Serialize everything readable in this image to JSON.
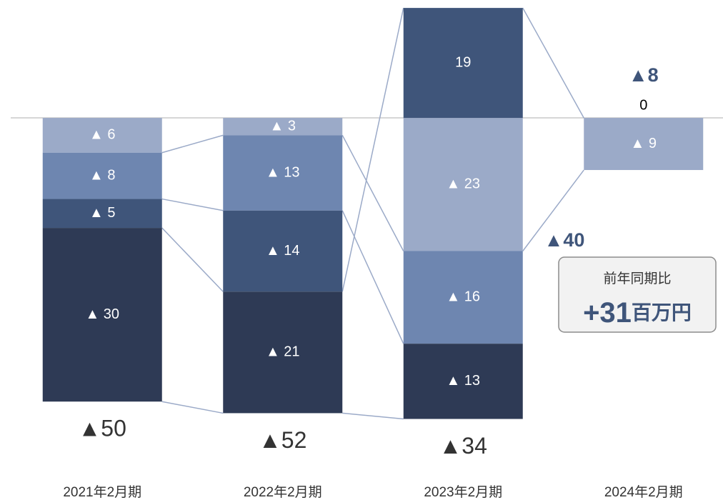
{
  "chart_data": {
    "type": "stacked_bar",
    "categories": [
      "2021年2月期",
      "2022年2月期",
      "2023年2月期",
      "2024年2月期"
    ],
    "series": [
      {
        "color": "#9BAAC8",
        "values": [
          -6,
          -3,
          -23,
          -9
        ],
        "value_labels": [
          "▲ 6",
          "▲ 3",
          "▲ 23",
          "▲ 9"
        ]
      },
      {
        "color": "#6E86B0",
        "values": [
          -8,
          -13,
          -16,
          null
        ],
        "value_labels": [
          "▲ 8",
          "▲ 13",
          "▲ 16",
          null
        ]
      },
      {
        "color": "#3F557A",
        "values": [
          -5,
          -14,
          19,
          0
        ],
        "value_labels": [
          "▲ 5",
          "▲ 14",
          "19",
          "0"
        ]
      },
      {
        "color": "#2E3A55",
        "values": [
          -30,
          -21,
          -13,
          null
        ],
        "value_labels": [
          "▲ 30",
          "▲ 21",
          "▲ 13",
          null
        ]
      }
    ],
    "totals": {
      "values": [
        -50,
        -52,
        -34,
        -8
      ],
      "value_labels": [
        "▲50",
        "▲52",
        "▲34",
        "▲8"
      ]
    },
    "annotations": [
      {
        "text": "▲40"
      }
    ],
    "callout": {
      "title": "前年同期比",
      "amount": "+31",
      "unit": "百万円"
    },
    "ylim": [
      -66,
      20
    ]
  }
}
